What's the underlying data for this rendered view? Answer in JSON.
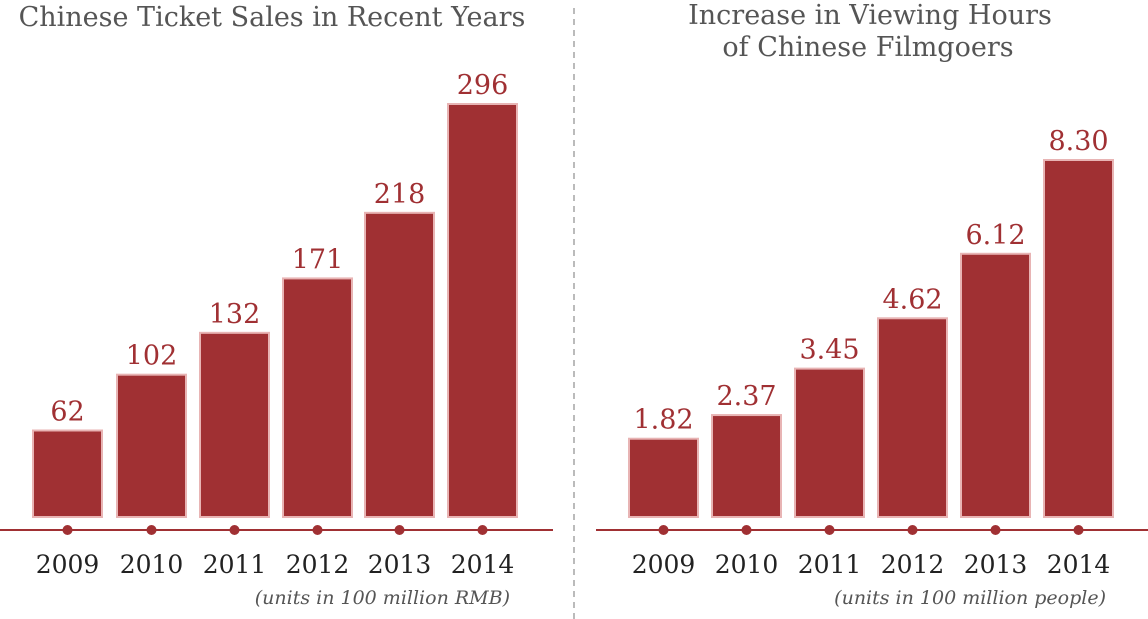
{
  "colors": {
    "bar": "#a03033",
    "bar_edge": "#e8b4b4",
    "axis": "#a03033",
    "title": "#555555",
    "value_label": "#a03033",
    "tick_label": "#222222",
    "note": "#555555",
    "divider": "#777777"
  },
  "chart_data": [
    {
      "type": "bar",
      "title": "Chinese Ticket Sales in Recent Years",
      "categories": [
        "2009",
        "2010",
        "2011",
        "2012",
        "2013",
        "2014"
      ],
      "values": [
        62,
        102,
        132,
        171,
        218,
        296
      ],
      "value_labels": [
        "62",
        "102",
        "132",
        "171",
        "218",
        "296"
      ],
      "ylim": [
        0,
        296
      ],
      "note": "(units in 100 million RMB)",
      "grid": false
    },
    {
      "type": "bar",
      "title": [
        "Increase in Viewing Hours",
        "of Chinese Filmgoers"
      ],
      "categories": [
        "2009",
        "2010",
        "2011",
        "2012",
        "2013",
        "2014"
      ],
      "values": [
        1.82,
        2.37,
        3.45,
        4.62,
        6.12,
        8.3
      ],
      "value_labels": [
        "1.82",
        "2.37",
        "3.45",
        "4.62",
        "6.12",
        "8.30"
      ],
      "ylim": [
        0,
        8.3
      ],
      "note": "(units in 100 million people)",
      "grid": false
    }
  ]
}
